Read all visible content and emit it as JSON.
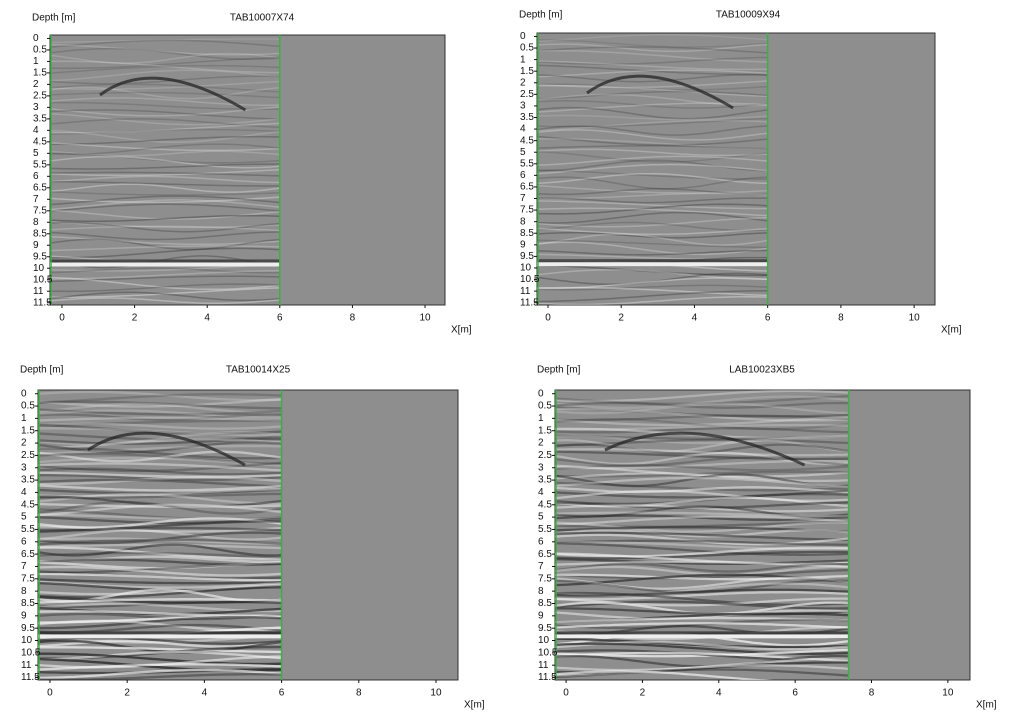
{
  "chart_data": [
    {
      "type": "radargram",
      "title": "TAB10007X74",
      "y_label": "Depth [m]",
      "x_label": "X[m]",
      "xlim": [
        -0.33,
        10.55
      ],
      "ylim": [
        -0.15,
        11.6
      ],
      "xticks": [
        0,
        2,
        4,
        6,
        8,
        10
      ],
      "yticks": [
        0,
        0.5,
        1,
        1.5,
        2,
        2.5,
        3,
        3.5,
        4,
        4.5,
        5,
        5.5,
        6,
        6.5,
        7,
        7.5,
        8,
        8.5,
        9,
        9.5,
        10,
        10.5,
        11,
        11.5
      ],
      "profile_end_x": 6,
      "color": "#3cb043"
    },
    {
      "type": "radargram",
      "title": "TAB10009X94",
      "y_label": "Depth [m]",
      "x_label": "X[m]",
      "xlim": [
        -0.3,
        10.57
      ],
      "ylim": [
        -0.15,
        11.6
      ],
      "xticks": [
        0,
        2,
        4,
        6,
        8,
        10
      ],
      "yticks": [
        0,
        0.5,
        1,
        1.5,
        2,
        2.5,
        3,
        3.5,
        4,
        4.5,
        5,
        5.5,
        6,
        6.5,
        7,
        7.5,
        8,
        8.5,
        9,
        9.5,
        10,
        10.5,
        11,
        11.5
      ],
      "profile_end_x": 6,
      "color": "#3cb043"
    },
    {
      "type": "radargram",
      "title": "TAB10014X25",
      "y_label": "Depth [m]",
      "x_label": "X[m]",
      "xlim": [
        -0.31,
        10.57
      ],
      "ylim": [
        -0.15,
        11.6
      ],
      "xticks": [
        0,
        2,
        4,
        6,
        8,
        10
      ],
      "yticks": [
        0,
        0.5,
        1,
        1.5,
        2,
        2.5,
        3,
        3.5,
        4,
        4.5,
        5,
        5.5,
        6,
        6.5,
        7,
        7.5,
        8,
        8.5,
        9,
        9.5,
        10,
        10.5,
        11,
        11.5
      ],
      "profile_end_x": 6,
      "color": "#3cb043"
    },
    {
      "type": "radargram",
      "title": "LAB10023XB5",
      "y_label": "Depth [m]",
      "x_label": "X[m]",
      "xlim": [
        -0.29,
        10.58
      ],
      "ylim": [
        -0.15,
        11.6
      ],
      "xticks": [
        0,
        2,
        4,
        6,
        8,
        10
      ],
      "yticks": [
        0,
        0.5,
        1,
        1.5,
        2,
        2.5,
        3,
        3.5,
        4,
        4.5,
        5,
        5.5,
        6,
        6.5,
        7,
        7.5,
        8,
        8.5,
        9,
        9.5,
        10,
        10.5,
        11,
        11.5
      ],
      "profile_end_x": 7.4,
      "color": "#3cb043"
    }
  ]
}
